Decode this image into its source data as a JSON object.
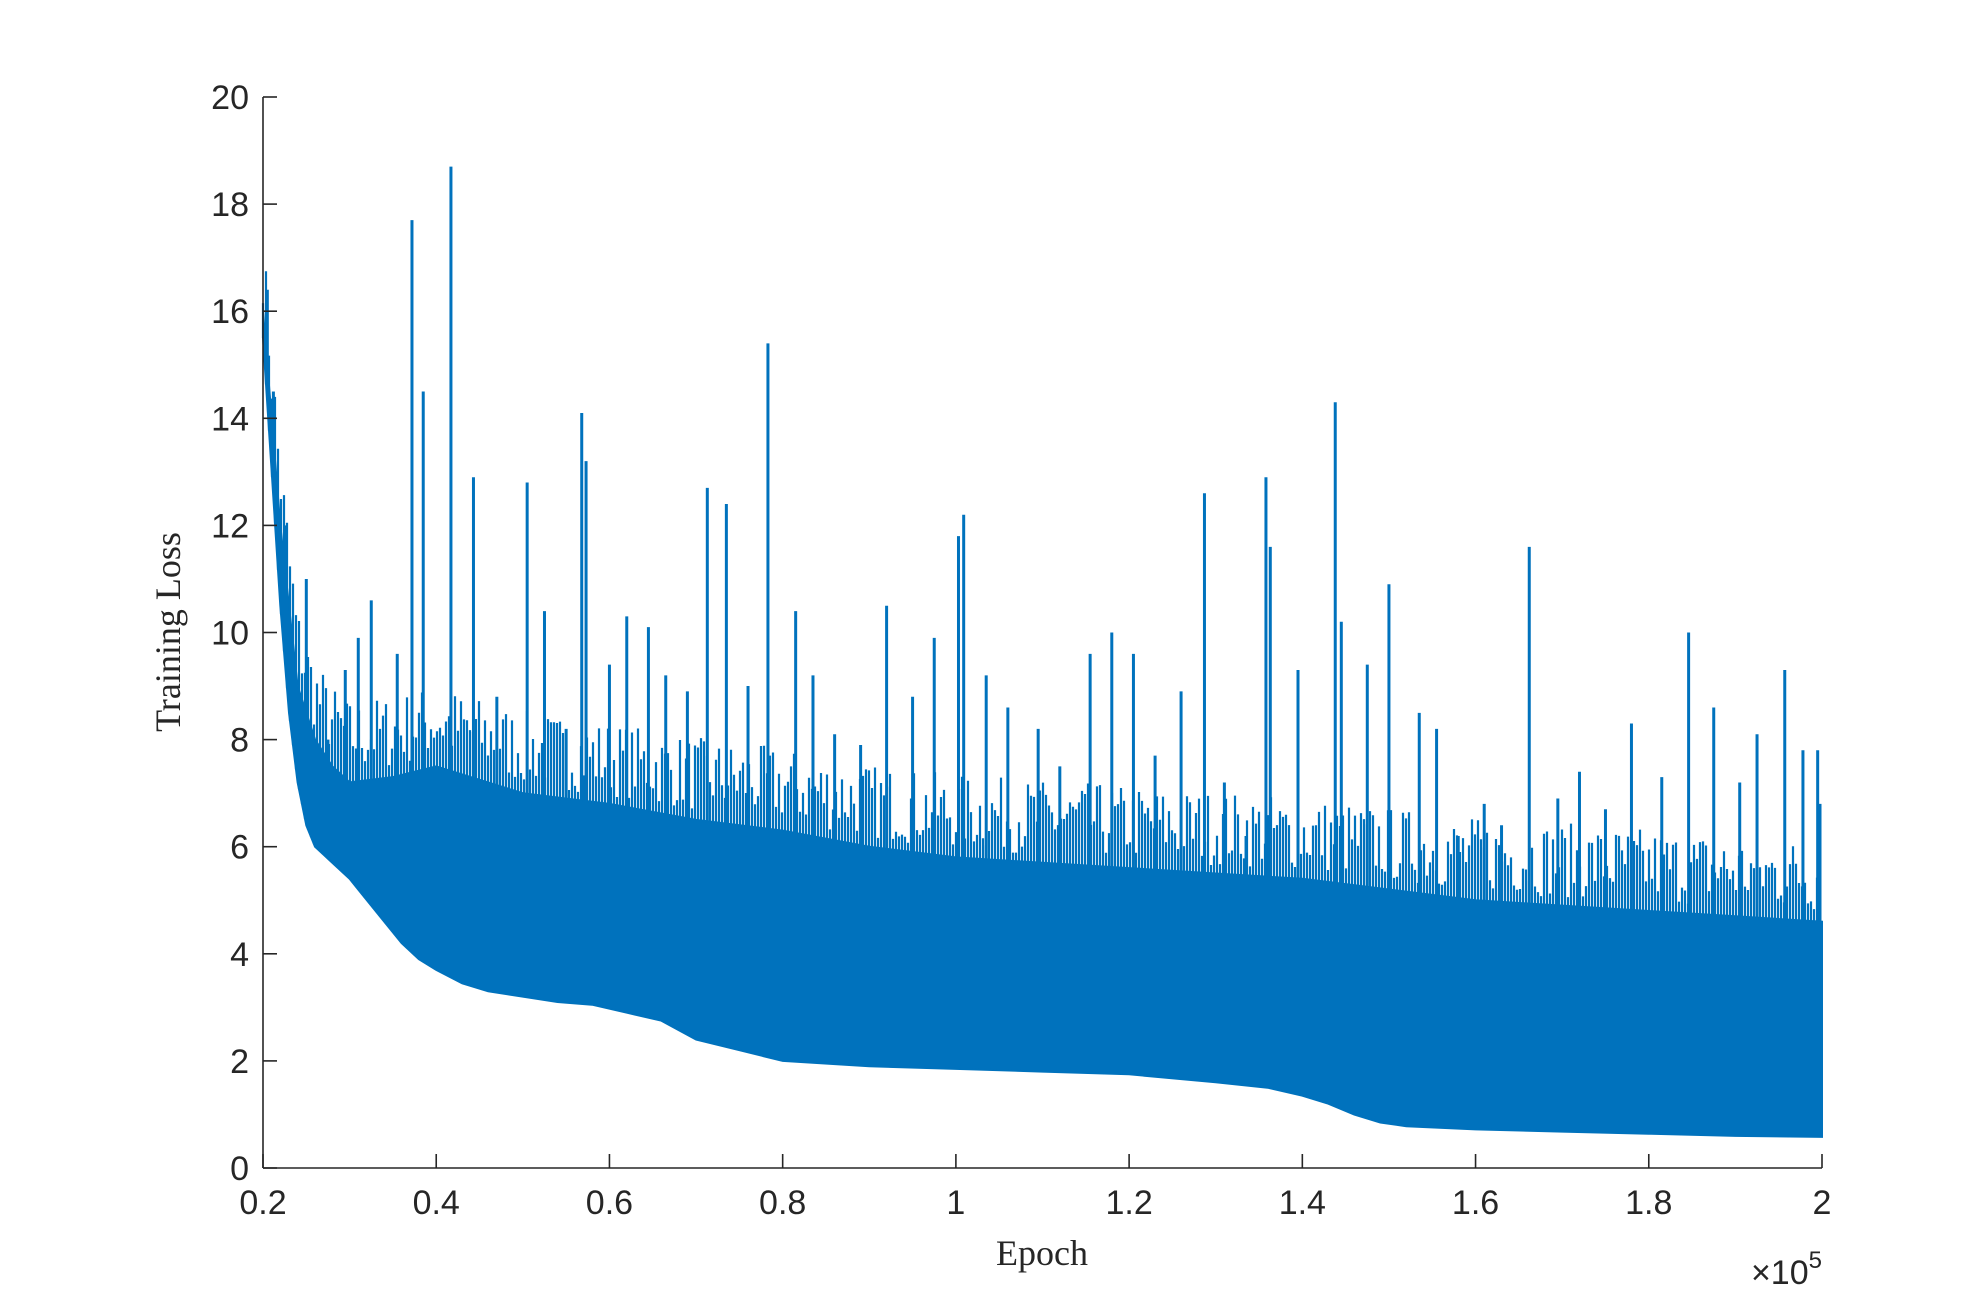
{
  "chart_data": {
    "type": "line",
    "xlabel": "Epoch",
    "ylabel": "Training Loss",
    "xlim": [
      20000,
      200000
    ],
    "ylim": [
      0,
      20
    ],
    "x_ticks": [
      20000,
      40000,
      60000,
      80000,
      100000,
      120000,
      140000,
      160000,
      180000,
      200000
    ],
    "x_tick_labels": [
      "0.2",
      "0.4",
      "0.6",
      "0.8",
      "1",
      "1.2",
      "1.4",
      "1.6",
      "1.8",
      "2"
    ],
    "y_ticks": [
      0,
      2,
      4,
      6,
      8,
      10,
      12,
      14,
      16,
      18,
      20
    ],
    "y_tick_labels": [
      "0",
      "2",
      "4",
      "6",
      "8",
      "10",
      "12",
      "14",
      "16",
      "18",
      "20"
    ],
    "x_multiplier": {
      "base": "×10",
      "exponent": "5"
    },
    "grid": false,
    "series": [
      {
        "color": "#0072BD",
        "lower_envelope": {
          "x": [
            20000,
            21000,
            22000,
            23000,
            24000,
            25000,
            26000,
            27000,
            28000,
            30000,
            32000,
            34000,
            36000,
            38000,
            40000,
            43000,
            46000,
            50000,
            54000,
            58000,
            62000,
            66000,
            70000,
            75000,
            80000,
            90000,
            100000,
            110000,
            120000,
            130000,
            136000,
            140000,
            143000,
            146000,
            149000,
            152000,
            160000,
            170000,
            180000,
            190000,
            200000
          ],
          "y": [
            15.5,
            13.0,
            10.5,
            8.5,
            7.2,
            6.4,
            6.0,
            5.85,
            5.7,
            5.4,
            5.0,
            4.6,
            4.2,
            3.9,
            3.7,
            3.45,
            3.3,
            3.2,
            3.1,
            3.05,
            2.9,
            2.75,
            2.4,
            2.2,
            2.0,
            1.9,
            1.85,
            1.8,
            1.75,
            1.6,
            1.5,
            1.35,
            1.2,
            1.0,
            0.85,
            0.78,
            0.72,
            0.68,
            0.64,
            0.6,
            0.58
          ]
        },
        "band_top": {
          "x": [
            20000,
            22000,
            24000,
            26000,
            28000,
            30000,
            35000,
            40000,
            50000,
            60000,
            70000,
            80000,
            90000,
            100000,
            110000,
            120000,
            130000,
            140000,
            150000,
            160000,
            170000,
            180000,
            190000,
            200000
          ],
          "y": [
            16.0,
            12.0,
            9.0,
            8.0,
            7.5,
            7.2,
            7.3,
            7.5,
            7.0,
            6.8,
            6.5,
            6.3,
            6.0,
            5.8,
            5.7,
            5.6,
            5.5,
            5.4,
            5.2,
            5.0,
            4.9,
            4.8,
            4.7,
            4.6
          ]
        },
        "spikes": {
          "x": [
            20500,
            21200,
            22600,
            25000,
            27500,
            29500,
            31000,
            32500,
            35500,
            37200,
            38500,
            41700,
            44300,
            47000,
            50500,
            52500,
            55000,
            56800,
            57300,
            60000,
            62000,
            64500,
            66500,
            69000,
            71300,
            73500,
            76000,
            78300,
            81500,
            83500,
            86000,
            89000,
            92000,
            95000,
            97500,
            100300,
            100900,
            103500,
            106000,
            109500,
            112000,
            115500,
            118000,
            120500,
            123000,
            126000,
            128700,
            131000,
            133500,
            135800,
            136300,
            139500,
            143800,
            144500,
            147500,
            150000,
            153500,
            155500,
            158000,
            161000,
            163000,
            166200,
            169500,
            172000,
            175000,
            178000,
            181500,
            184600,
            187500,
            190500,
            192500,
            195700,
            197800,
            199500
          ],
          "y": [
            16.4,
            14.5,
            12.0,
            11.0,
            8.0,
            9.3,
            9.9,
            10.6,
            9.6,
            17.7,
            14.5,
            18.7,
            12.9,
            8.8,
            12.8,
            10.4,
            8.2,
            14.1,
            13.2,
            9.4,
            10.3,
            10.1,
            9.2,
            8.9,
            12.7,
            12.4,
            9.0,
            15.4,
            10.4,
            9.2,
            8.1,
            7.9,
            10.5,
            8.8,
            9.9,
            11.8,
            12.2,
            9.2,
            8.6,
            8.2,
            7.5,
            9.6,
            10.0,
            9.6,
            7.7,
            8.9,
            12.6,
            7.2,
            6.2,
            12.9,
            11.6,
            9.3,
            14.3,
            10.2,
            9.4,
            10.9,
            8.5,
            8.2,
            6.2,
            6.8,
            6.4,
            11.6,
            6.9,
            7.4,
            6.7,
            8.3,
            7.3,
            10.0,
            8.6,
            7.2,
            8.1,
            9.3,
            7.8,
            7.8
          ]
        }
      }
    ]
  }
}
